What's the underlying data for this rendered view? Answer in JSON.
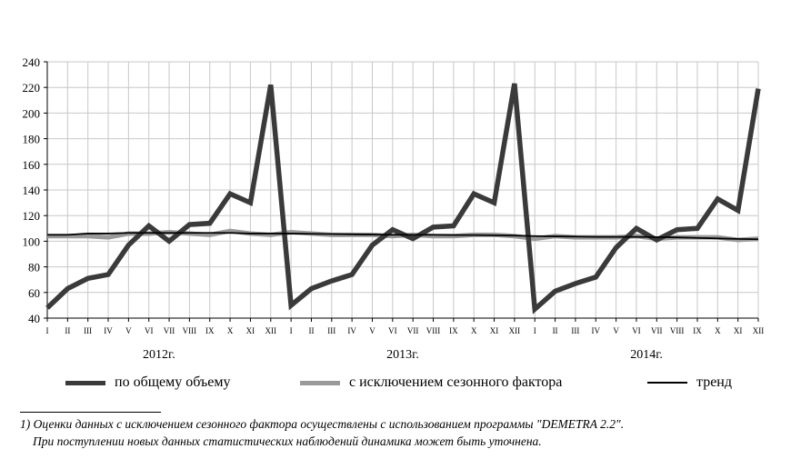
{
  "chart_data": {
    "type": "line",
    "title": "",
    "xlabel": "",
    "ylabel": "",
    "ylim": [
      40,
      240
    ],
    "yticks": [
      40,
      60,
      80,
      100,
      120,
      140,
      160,
      180,
      200,
      220,
      240
    ],
    "grid": true,
    "legend_position": "bottom",
    "categories": [
      "I",
      "II",
      "III",
      "IV",
      "V",
      "VI",
      "VII",
      "VIII",
      "IX",
      "X",
      "XI",
      "XII",
      "I",
      "II",
      "III",
      "IV",
      "V",
      "VI",
      "VII",
      "VIII",
      "IX",
      "X",
      "XI",
      "XII",
      "I",
      "II",
      "III",
      "IV",
      "V",
      "VI",
      "VII",
      "VIII",
      "IX",
      "X",
      "XI",
      "XII"
    ],
    "years": [
      {
        "label": "2012г.",
        "start": 0,
        "end": 11
      },
      {
        "label": "2013г.",
        "start": 12,
        "end": 23
      },
      {
        "label": "2014г.",
        "start": 24,
        "end": 35
      }
    ],
    "series": [
      {
        "name": "по общему объему",
        "color": "#3a3a3a",
        "width": 5.5,
        "values": [
          48,
          63,
          71,
          74,
          97,
          112,
          100,
          113,
          114,
          137,
          130,
          222,
          50,
          63,
          69,
          74,
          97,
          109,
          102,
          111,
          112,
          137,
          130,
          223,
          47,
          61,
          67,
          72,
          95,
          110,
          101,
          109,
          110,
          133,
          124,
          219
        ]
      },
      {
        "name": "с исключением сезонного фактора",
        "color": "#9a9a9a",
        "width": 5,
        "values": [
          104,
          104,
          104,
          103,
          106,
          106,
          107,
          106,
          105,
          108,
          106,
          105,
          107,
          106,
          105,
          105,
          105,
          104,
          105,
          104,
          104,
          105,
          105,
          104,
          102,
          104,
          103,
          103,
          103,
          104,
          102,
          103,
          103,
          103,
          101,
          102
        ]
      },
      {
        "name": "тренд",
        "color": "#000000",
        "width": 1.8,
        "values": [
          105,
          105,
          106,
          106,
          106.5,
          106.5,
          106.5,
          106.5,
          106.5,
          106.5,
          106,
          106,
          106,
          105.8,
          105.6,
          105.4,
          105.2,
          105,
          105,
          105,
          104.8,
          104.8,
          104.6,
          104.4,
          104,
          103.8,
          103.6,
          103.4,
          103.4,
          103.4,
          103.2,
          103,
          102.6,
          102.2,
          101.8,
          101.5
        ]
      }
    ]
  },
  "footnote": {
    "line1": "1) Оценки  данных с исключением сезонного фактора осуществлены с использованием программы \"DEMETRA 2.2\".",
    "line2": "При поступлении новых данных статистических наблюдений динамика может быть уточнена."
  }
}
